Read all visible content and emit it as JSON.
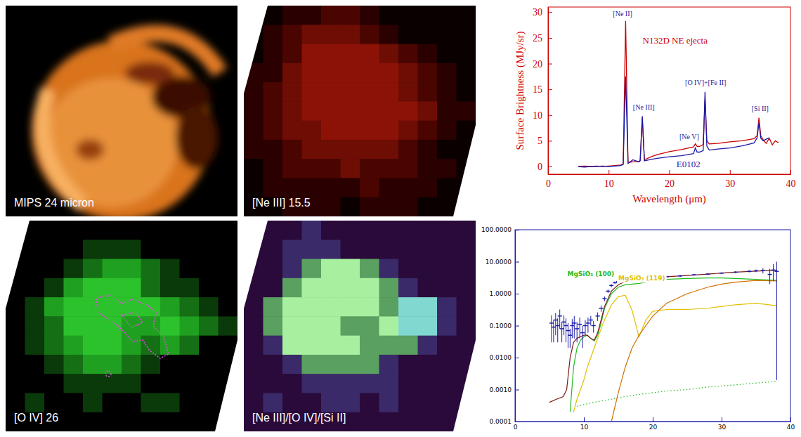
{
  "images": [
    {
      "label": "MIPS 24 micron"
    },
    {
      "label": "[Ne III] 15.5"
    },
    {
      "label": "[O IV] 26"
    },
    {
      "label": "[Ne III]/[O IV]/[Si II]"
    }
  ],
  "chart_data": [
    {
      "type": "line",
      "x_label": "Wavelength (μm)",
      "y_label": "Surface Brightness (MJy/sr)",
      "x": [
        5,
        6,
        7,
        8,
        9,
        10,
        11,
        12,
        12.4,
        12.8,
        13.2,
        14,
        15,
        15.2,
        15.55,
        15.9,
        17,
        18,
        20,
        22,
        24,
        24.3,
        24.6,
        25,
        25.6,
        25.9,
        26.2,
        26.6,
        28,
        30,
        32,
        33,
        34,
        34.5,
        34.8,
        35.1,
        35.5,
        36,
        36.5,
        37,
        37.5,
        38
      ],
      "series": [
        {
          "name": "N132D NE ejecta",
          "color": "#cc0000",
          "values": [
            0,
            0.1,
            0,
            0.1,
            0,
            0.1,
            0.2,
            0.3,
            0.5,
            28.3,
            0.8,
            0.9,
            1.0,
            1.2,
            9.5,
            1.3,
            1.9,
            2.3,
            2.9,
            3.3,
            3.8,
            4.4,
            3.9,
            3.9,
            4.3,
            13.0,
            5.0,
            4.4,
            4.5,
            4.8,
            5.0,
            5.2,
            5.4,
            6.0,
            9.5,
            6.0,
            5.2,
            4.5,
            5.5,
            4.2,
            5.0,
            4.6
          ]
        },
        {
          "name": "E0102",
          "color": "#1a1aaa",
          "values": [
            0,
            -0.1,
            0,
            0,
            0.1,
            0,
            0.1,
            0.2,
            0.4,
            17.5,
            0.6,
            1.3,
            0.9,
            1.1,
            9.8,
            1.1,
            1.4,
            1.6,
            1.9,
            2.1,
            2.5,
            3.6,
            2.8,
            2.8,
            3.1,
            14.5,
            4.0,
            3.2,
            3.4,
            3.6,
            4.0,
            4.3,
            4.6,
            5.6,
            8.5,
            5.5,
            5.0,
            5.3,
            5.6,
            null,
            null,
            null
          ]
        }
      ],
      "annotations": [
        {
          "text": "[Ne II]",
          "x": 12.3,
          "y": 29.2
        },
        {
          "text": "[Ne III]",
          "x": 15.8,
          "y": 11
        },
        {
          "text": "[Ne V]",
          "x": 23.3,
          "y": 5.3
        },
        {
          "text": "[O IV]+[Fe II]",
          "x": 26,
          "y": 15.8
        },
        {
          "text": "[Si II]",
          "x": 35,
          "y": 10.8
        }
      ],
      "xlim": [
        0,
        40
      ],
      "ylim": [
        -1.5,
        31
      ],
      "xticks": [
        0,
        10,
        20,
        30,
        40
      ],
      "yticks": [
        0,
        5,
        10,
        15,
        20,
        25,
        30
      ]
    },
    {
      "type": "line",
      "log": "y",
      "x": [
        5,
        6,
        7,
        7.5,
        8,
        8.5,
        9,
        9.5,
        10,
        10.5,
        11,
        11.5,
        12,
        12.5,
        13,
        14,
        15,
        16,
        17,
        18,
        19,
        20,
        22,
        25,
        28,
        30,
        32,
        35,
        38
      ],
      "series": [
        {
          "name": "MgSiO₃ (100)",
          "color": "#22bb22",
          "values": [
            null,
            null,
            null,
            null,
            0.0002,
            0.005,
            0.02,
            0.035,
            0.045,
            0.05,
            0.04,
            0.033,
            0.05,
            0.12,
            0.35,
            1.0,
            1.6,
            1.9,
            2.0,
            2.1,
            2.3,
            2.5,
            2.8,
            3.0,
            3.1,
            3.1,
            3.0,
            2.8,
            2.6
          ]
        },
        {
          "name": "MgSiO₃ (119)",
          "color": "#e0c000",
          "values": [
            null,
            null,
            null,
            null,
            null,
            0.0002,
            0.0005,
            0.001,
            0.002,
            0.005,
            0.01,
            0.02,
            0.04,
            0.08,
            0.15,
            0.45,
            0.8,
            0.9,
            0.3,
            0.045,
            0.15,
            0.28,
            0.32,
            0.32,
            0.35,
            0.4,
            0.45,
            0.5,
            0.42
          ]
        },
        {
          "color": "#d07000",
          "values": [
            null,
            null,
            null,
            null,
            null,
            null,
            null,
            null,
            null,
            null,
            null,
            null,
            null,
            null,
            null,
            0.0001,
            0.0008,
            0.005,
            0.02,
            0.05,
            0.1,
            0.2,
            0.5,
            1.0,
            1.6,
            2.0,
            2.3,
            2.6,
            2.5
          ]
        },
        {
          "color": "#7a1a1a",
          "values": [
            0.0004,
            0.0005,
            0.0006,
            0.001,
            0.01,
            0.03,
            0.04,
            0.045,
            0.05,
            0.05,
            0.04,
            0.035,
            0.06,
            0.15,
            0.4,
            1.2,
            1.9,
            2.4,
            2.7,
            2.9,
            3.1,
            3.2,
            3.4,
            3.7,
            4.1,
            4.4,
            4.7,
            5.1,
            5.4
          ]
        },
        {
          "color": "#22bb22",
          "line_style": "dotted",
          "values": [
            null,
            null,
            null,
            null,
            null,
            null,
            0.0003,
            0.00032,
            0.00034,
            0.00036,
            0.00038,
            0.0004,
            0.00042,
            0.00044,
            0.00046,
            0.0005,
            0.00055,
            0.0006,
            0.00065,
            0.0007,
            0.00075,
            0.0008,
            0.0009,
            0.001,
            0.0012,
            0.0013,
            0.0014,
            0.0016,
            0.0018
          ]
        },
        {
          "type": "scatter",
          "color": "#1a1aaa",
          "marker": "dash",
          "x": [
            5.3,
            5.6,
            5.9,
            6.2,
            6.5,
            6.8,
            7.1,
            7.4,
            7.7,
            8.0,
            8.3,
            8.6,
            9.0,
            9.4,
            9.8,
            10.2,
            10.6,
            11.0,
            11.4,
            12.0,
            12.5,
            13.0,
            13.5,
            14.0,
            14.5,
            15.0,
            16,
            17,
            18,
            19,
            20,
            22,
            24,
            26,
            28,
            30,
            32,
            34,
            35,
            36,
            37,
            37.5,
            38
          ],
          "values": [
            0.12,
            0.09,
            0.15,
            0.1,
            0.2,
            0.08,
            0.13,
            0.1,
            0.07,
            0.05,
            0.1,
            0.12,
            0.08,
            0.11,
            0.06,
            0.1,
            0.12,
            0.15,
            0.1,
            0.2,
            0.35,
            0.7,
            1.2,
            1.8,
            2.2,
            2.4,
            2.7,
            2.8,
            3.0,
            3.1,
            3.2,
            3.4,
            3.6,
            3.9,
            4.1,
            4.4,
            4.7,
            5.0,
            5.2,
            5.3,
            4.0,
            5.5,
            5.0
          ],
          "errors": [
            0.09,
            0.06,
            0.1,
            0.07,
            0.12,
            0.05,
            0.08,
            0.07,
            0.05,
            0.03,
            0.06,
            0.08,
            0.05,
            0.07,
            0.04,
            0.05,
            0.06,
            0.05,
            0.04,
            0.06,
            0.08,
            0.12,
            0.15,
            0.2,
            0.2,
            0.2,
            0.2,
            0.2,
            0.2,
            0.2,
            0.2,
            0.2,
            0.25,
            0.25,
            0.3,
            0.3,
            0.35,
            0.4,
            0.5,
            1.0,
            2.0,
            3.0,
            4.998
          ]
        }
      ],
      "xlim": [
        0,
        40
      ],
      "ylim": [
        0.0001,
        100
      ],
      "xticks": [
        0,
        10,
        20,
        30,
        40
      ],
      "yticks": [
        0.0001,
        {
          "value": 0.001,
          "label": "0.0010"
        },
        {
          "value": 0.01,
          "label": "0.0100"
        },
        {
          "value": 0.1,
          "label": "0.1000"
        },
        {
          "value": 1,
          "label": "1.0000"
        },
        {
          "value": 10,
          "label": "10.0000"
        },
        {
          "value": 100,
          "label": "100.0000"
        }
      ]
    }
  ]
}
